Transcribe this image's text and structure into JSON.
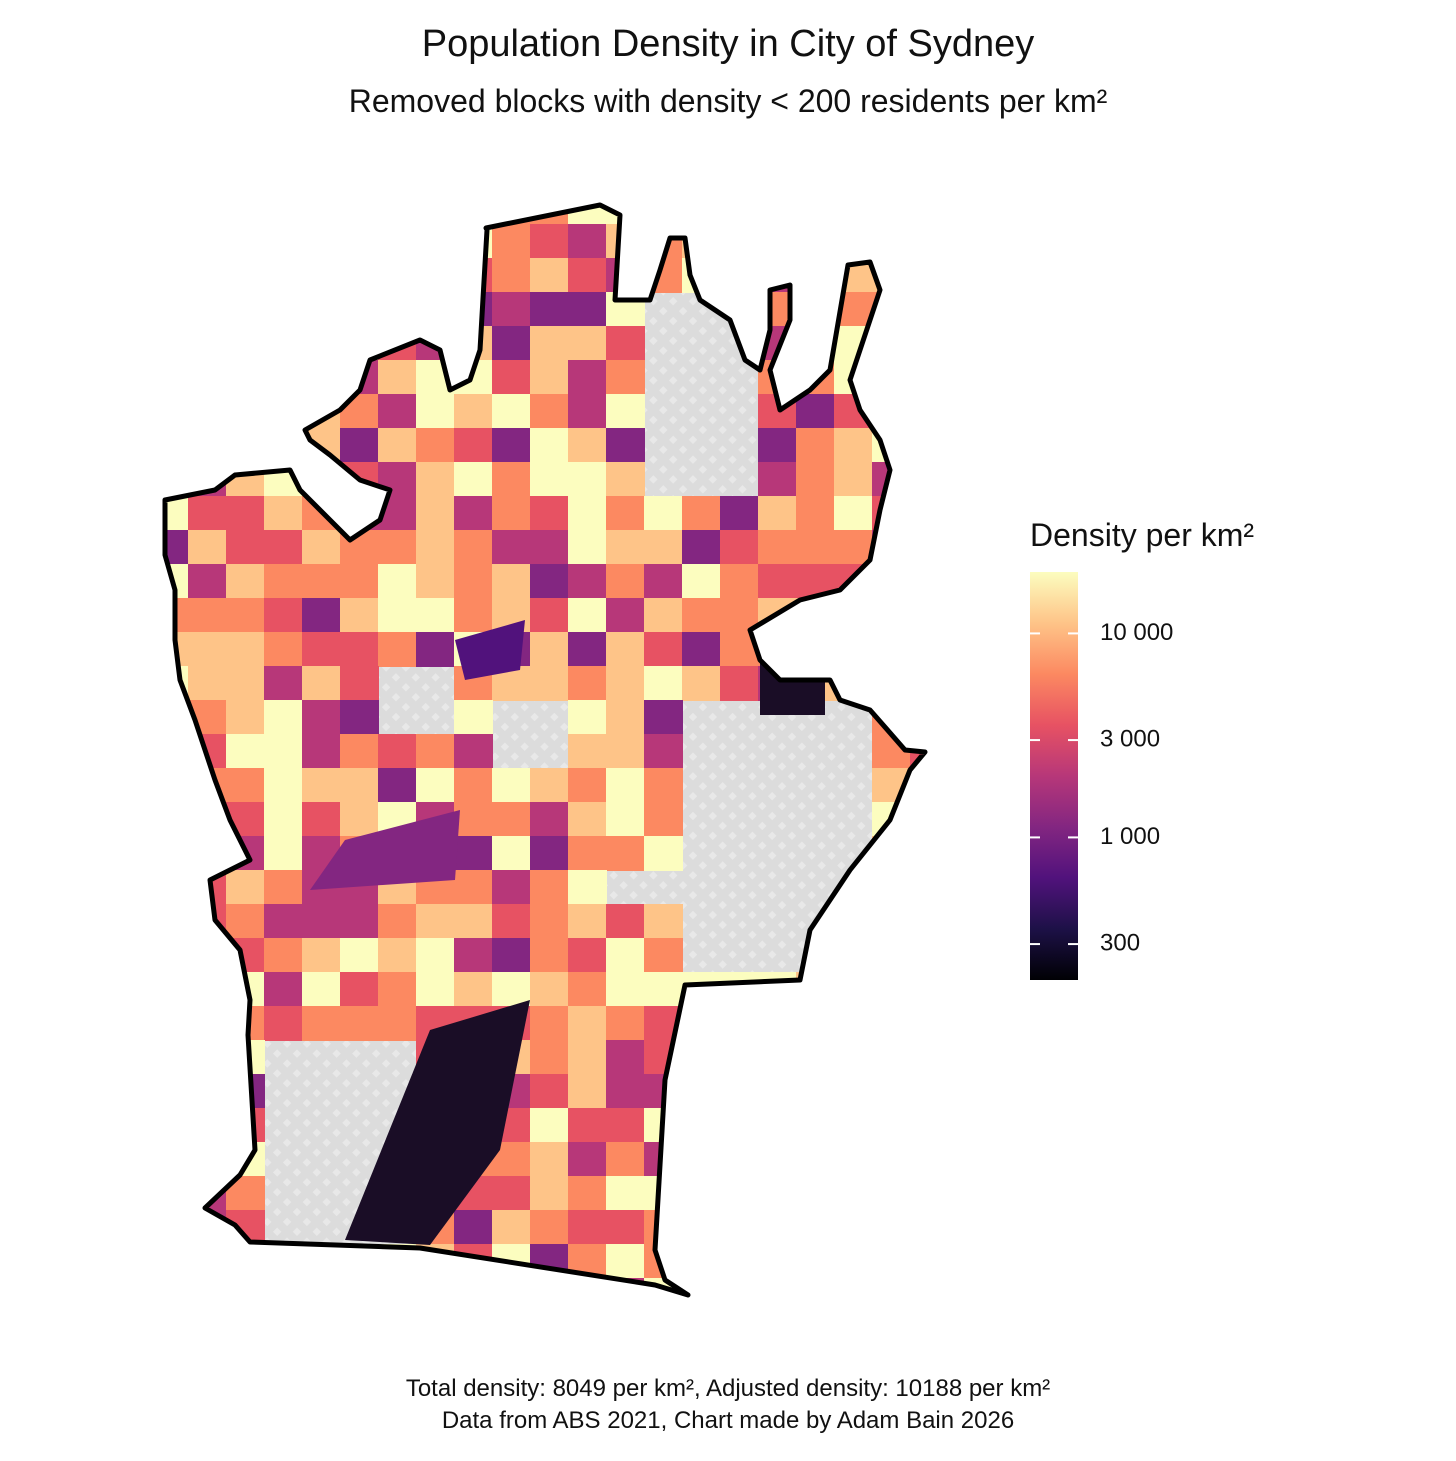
{
  "chart_data": {
    "type": "choropleth",
    "title": "Population Density in City of Sydney",
    "subtitle": "Removed blocks with density < 200 residents per km²",
    "legend_title": "Density per km²",
    "log_scale": true,
    "colorbar_lim": [
      200,
      20000
    ],
    "colorbar_ticks": [
      300,
      {
        "value": 1000,
        "label": "1 000"
      },
      {
        "value": 3000,
        "label": "3 000"
      },
      {
        "value": 10000,
        "label": "10 000"
      }
    ],
    "colors": [
      "#000004",
      "#1d1147",
      "#51127c",
      "#832681",
      "#b73779",
      "#e75263",
      "#fc8961",
      "#fec488",
      "#fcfdbf"
    ],
    "caption": [
      "Total density: 8049 per km², Adjusted density: 10188 per km²",
      "Data from ABS 2021, Chart made by Adam Bain 2026"
    ]
  }
}
